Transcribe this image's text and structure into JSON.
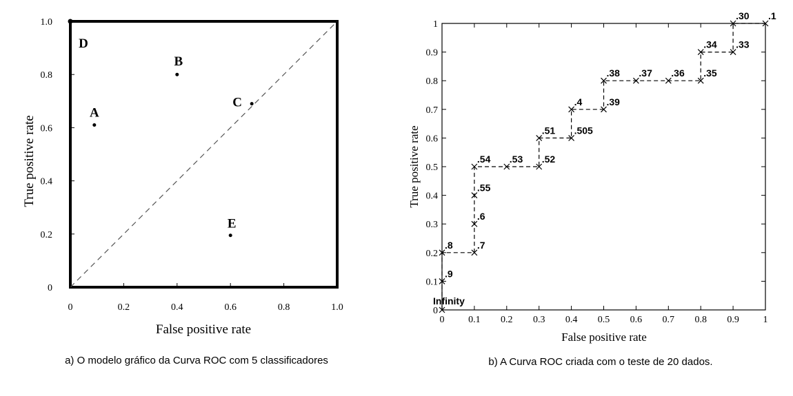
{
  "chart_data": [
    {
      "type": "scatter",
      "xlabel": "False positive rate",
      "ylabel": "True positive rate",
      "xlim": [
        0,
        1
      ],
      "ylim": [
        0,
        1
      ],
      "xticks": [
        "0",
        "0.2",
        "0.4",
        "0.6",
        "0.8",
        "1.0"
      ],
      "xtick_values": [
        0,
        0.2,
        0.4,
        0.6,
        0.8,
        1.0
      ],
      "yticks": [
        "0",
        "0.2",
        "0.4",
        "0.6",
        "0.8",
        "1.0"
      ],
      "ytick_values": [
        0,
        0.2,
        0.4,
        0.6,
        0.8,
        1.0
      ],
      "diagonal": true,
      "points": [
        {
          "label": "A",
          "x": 0.09,
          "y": 0.61
        },
        {
          "label": "B",
          "x": 0.4,
          "y": 0.8
        },
        {
          "label": "C",
          "x": 0.68,
          "y": 0.69
        },
        {
          "label": "D",
          "x": 0.0,
          "y": 1.0
        },
        {
          "label": "E",
          "x": 0.6,
          "y": 0.195
        }
      ],
      "caption": "a) O modelo gráfico da Curva ROC com 5 classificadores"
    },
    {
      "type": "line",
      "xlabel": "False positive rate",
      "ylabel": "True positive rate",
      "xlim": [
        0,
        1
      ],
      "ylim": [
        0,
        1
      ],
      "xticks": [
        "0",
        "0.1",
        "0.2",
        "0.3",
        "0.4",
        "0.5",
        "0.6",
        "0.7",
        "0.8",
        "0.9",
        "1"
      ],
      "yticks": [
        "0",
        "0.1",
        "0.2",
        "0.3",
        "0.4",
        "0.5",
        "0.6",
        "0.7",
        "0.8",
        "0.9",
        "1"
      ],
      "points": [
        {
          "label": "Infinity",
          "x": 0,
          "y": 0
        },
        {
          "label": ".9",
          "x": 0,
          "y": 0.1
        },
        {
          "label": ".8",
          "x": 0,
          "y": 0.2
        },
        {
          "label": ".7",
          "x": 0.1,
          "y": 0.2
        },
        {
          "label": ".6",
          "x": 0.1,
          "y": 0.3
        },
        {
          "label": ".55",
          "x": 0.1,
          "y": 0.4
        },
        {
          "label": ".54",
          "x": 0.1,
          "y": 0.5
        },
        {
          "label": ".53",
          "x": 0.2,
          "y": 0.5
        },
        {
          "label": ".52",
          "x": 0.3,
          "y": 0.5
        },
        {
          "label": ".51",
          "x": 0.3,
          "y": 0.6
        },
        {
          "label": ".505",
          "x": 0.4,
          "y": 0.6
        },
        {
          "label": ".4",
          "x": 0.4,
          "y": 0.7
        },
        {
          "label": ".39",
          "x": 0.5,
          "y": 0.7
        },
        {
          "label": ".38",
          "x": 0.5,
          "y": 0.8
        },
        {
          "label": ".37",
          "x": 0.6,
          "y": 0.8
        },
        {
          "label": ".36",
          "x": 0.7,
          "y": 0.8
        },
        {
          "label": ".35",
          "x": 0.8,
          "y": 0.8
        },
        {
          "label": ".34",
          "x": 0.8,
          "y": 0.9
        },
        {
          "label": ".33",
          "x": 0.9,
          "y": 0.9
        },
        {
          "label": ".30",
          "x": 0.9,
          "y": 1.0
        },
        {
          "label": ".1",
          "x": 1.0,
          "y": 1.0
        }
      ],
      "caption": "b) A Curva ROC criada com o teste de 20 dados."
    }
  ]
}
